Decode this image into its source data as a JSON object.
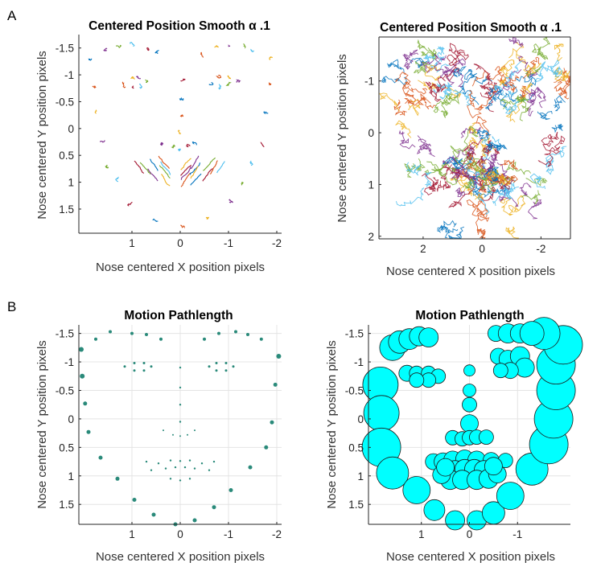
{
  "figure": {
    "panel_letters": [
      "A",
      "B"
    ]
  },
  "chart_data": [
    {
      "id": "A1",
      "type": "line",
      "title": "Centered Position Smooth α .1",
      "xlabel": "Nose centered X position pixels",
      "ylabel": "Nose centered Y position pixels",
      "xlim": [
        2.1,
        -2.1
      ],
      "ylim": [
        -1.75,
        1.95
      ],
      "xticks": [
        1,
        0,
        -1,
        -2
      ],
      "xtick_labels": [
        "1",
        "0",
        "-1",
        "-2"
      ],
      "yticks": [
        -1.5,
        -1,
        -0.5,
        0,
        0.5,
        1,
        1.5
      ],
      "ytick_labels": [
        "-1.5",
        "-1",
        "-0.5",
        "0",
        "0.5",
        "1",
        "1.5"
      ],
      "grid": false,
      "series_description": "small jitter trajectories at 68 facial landmarks",
      "colors": [
        "#0072BD",
        "#D95319",
        "#EDB120",
        "#7E2F8E",
        "#77AC30",
        "#4DBEEE",
        "#A2142F"
      ],
      "landmarks": [
        [
          1.85,
          -1.3
        ],
        [
          1.82,
          -0.8
        ],
        [
          1.75,
          -0.3
        ],
        [
          1.65,
          0.25
        ],
        [
          1.5,
          0.7
        ],
        [
          1.3,
          1.0
        ],
        [
          1.0,
          1.35
        ],
        [
          0.55,
          1.7
        ],
        [
          0.0,
          1.82
        ],
        [
          -0.55,
          1.7
        ],
        [
          -1.0,
          1.35
        ],
        [
          -1.3,
          1.0
        ],
        [
          -1.5,
          0.7
        ],
        [
          -1.65,
          0.25
        ],
        [
          -1.75,
          -0.3
        ],
        [
          -1.82,
          -0.8
        ],
        [
          -1.85,
          -1.3
        ],
        [
          1.55,
          -1.45
        ],
        [
          1.35,
          -1.52
        ],
        [
          1.0,
          -1.55
        ],
        [
          0.7,
          -1.5
        ],
        [
          0.45,
          -1.4
        ],
        [
          -0.45,
          -1.4
        ],
        [
          -0.7,
          -1.5
        ],
        [
          -1.0,
          -1.55
        ],
        [
          -1.35,
          -1.52
        ],
        [
          -1.55,
          -1.45
        ],
        [
          0.0,
          -0.9
        ],
        [
          0.0,
          -0.55
        ],
        [
          0.0,
          -0.25
        ],
        [
          0.0,
          0.05
        ],
        [
          0.35,
          0.3
        ],
        [
          0.18,
          0.35
        ],
        [
          0.0,
          0.38
        ],
        [
          -0.18,
          0.35
        ],
        [
          -0.35,
          0.3
        ],
        [
          1.2,
          -0.85
        ],
        [
          1.0,
          -0.95
        ],
        [
          0.8,
          -0.95
        ],
        [
          0.65,
          -0.85
        ],
        [
          0.8,
          -0.78
        ],
        [
          1.0,
          -0.78
        ],
        [
          -0.65,
          -0.85
        ],
        [
          -0.8,
          -0.95
        ],
        [
          -1.0,
          -0.95
        ],
        [
          -1.2,
          -0.85
        ],
        [
          -1.0,
          -0.78
        ],
        [
          -0.8,
          -0.78
        ],
        [
          0.75,
          0.85
        ],
        [
          0.45,
          0.8
        ],
        [
          0.2,
          0.76
        ],
        [
          0.0,
          0.78
        ],
        [
          -0.2,
          0.76
        ],
        [
          -0.45,
          0.8
        ],
        [
          -0.75,
          0.85
        ],
        [
          -0.45,
          1.0
        ],
        [
          -0.2,
          1.08
        ],
        [
          0.0,
          1.1
        ],
        [
          0.2,
          1.08
        ],
        [
          0.45,
          1.0
        ],
        [
          0.6,
          0.87
        ],
        [
          0.2,
          0.88
        ],
        [
          0.0,
          0.9
        ],
        [
          -0.2,
          0.88
        ],
        [
          -0.6,
          0.87
        ],
        [
          -0.2,
          0.95
        ],
        [
          0.0,
          0.97
        ],
        [
          0.2,
          0.95
        ]
      ]
    },
    {
      "id": "A2",
      "type": "line",
      "title": "Centered Position Smooth α .1",
      "xlabel": "Nose centered X position pixels",
      "ylabel": "Nose centered Y position pixels",
      "xlim": [
        3.5,
        -3.0
      ],
      "ylim": [
        -1.85,
        2.05
      ],
      "xticks": [
        2,
        0,
        -2
      ],
      "xtick_labels": [
        "2",
        "0",
        "-2"
      ],
      "yticks": [
        -1,
        0,
        1,
        2
      ],
      "ytick_labels": [
        "-1",
        "0",
        "1",
        "2"
      ],
      "grid": false,
      "series_description": "dense overlapping trajectories for every landmark, spread much wider than panel 1",
      "colors": [
        "#0072BD",
        "#D95319",
        "#EDB120",
        "#7E2F8E",
        "#77AC30",
        "#4DBEEE",
        "#A2142F"
      ]
    },
    {
      "id": "B1",
      "type": "scatter",
      "title": "Motion Pathlength",
      "xlabel": "Nose centered X position pixels",
      "ylabel": "Nose centered Y position pixels",
      "xlim": [
        2.1,
        -2.1
      ],
      "ylim": [
        -1.65,
        1.85
      ],
      "xticks": [
        1,
        0,
        -1,
        -2
      ],
      "xtick_labels": [
        "1",
        "0",
        "-1",
        "-2"
      ],
      "yticks": [
        -1.5,
        -1,
        -0.5,
        0,
        0.5,
        1,
        1.5
      ],
      "ytick_labels": [
        "-1.5",
        "-1",
        "-0.5",
        "0",
        "0.5",
        "1",
        "1.5"
      ],
      "grid": true,
      "marker_color": "#2a8a7a",
      "points": [
        [
          2.05,
          -1.22,
          3
        ],
        [
          2.03,
          -0.75,
          3
        ],
        [
          1.97,
          -0.27,
          2.5
        ],
        [
          1.9,
          0.23,
          2.5
        ],
        [
          1.65,
          0.68,
          2.5
        ],
        [
          1.3,
          1.05,
          2.5
        ],
        [
          0.95,
          1.42,
          2.5
        ],
        [
          0.55,
          1.68,
          2.5
        ],
        [
          0.1,
          1.85,
          2.5
        ],
        [
          -0.3,
          1.78,
          2.5
        ],
        [
          -0.7,
          1.55,
          2.5
        ],
        [
          -1.05,
          1.25,
          2.5
        ],
        [
          -1.45,
          0.85,
          2.5
        ],
        [
          -1.78,
          0.5,
          2.5
        ],
        [
          -1.9,
          0.06,
          2.5
        ],
        [
          -1.97,
          -0.6,
          2.5
        ],
        [
          -2.04,
          -1.1,
          3
        ],
        [
          1.75,
          -1.4,
          2
        ],
        [
          1.45,
          -1.53,
          2
        ],
        [
          1.0,
          -1.5,
          2
        ],
        [
          0.7,
          -1.48,
          2
        ],
        [
          0.4,
          -1.4,
          2
        ],
        [
          -0.5,
          -1.4,
          2
        ],
        [
          -0.8,
          -1.5,
          2
        ],
        [
          -1.15,
          -1.53,
          2
        ],
        [
          -1.4,
          -1.48,
          2
        ],
        [
          -1.68,
          -1.4,
          2
        ],
        [
          1.15,
          -0.92,
          1.5
        ],
        [
          0.95,
          -0.98,
          1.5
        ],
        [
          0.75,
          -0.98,
          1.5
        ],
        [
          0.6,
          -0.92,
          1.5
        ],
        [
          0.75,
          -0.85,
          1.5
        ],
        [
          0.95,
          -0.85,
          1.5
        ],
        [
          -0.6,
          -0.92,
          1.5
        ],
        [
          -0.75,
          -0.98,
          1.5
        ],
        [
          -0.95,
          -0.98,
          1.5
        ],
        [
          -1.1,
          -0.92,
          1.5
        ],
        [
          -0.95,
          -0.85,
          1.5
        ],
        [
          -0.75,
          -0.85,
          1.5
        ],
        [
          0.0,
          -0.9,
          1.2
        ],
        [
          0.0,
          -0.55,
          1.2
        ],
        [
          0.0,
          -0.25,
          1.2
        ],
        [
          0.0,
          0.05,
          1.2
        ],
        [
          0.35,
          0.2,
          1
        ],
        [
          0.15,
          0.28,
          1
        ],
        [
          0.0,
          0.3,
          1
        ],
        [
          -0.15,
          0.28,
          1
        ],
        [
          -0.3,
          0.2,
          1
        ],
        [
          0.7,
          0.75,
          1.2
        ],
        [
          0.45,
          0.78,
          1.2
        ],
        [
          0.2,
          0.73,
          1.2
        ],
        [
          0.0,
          0.74,
          1.2
        ],
        [
          -0.2,
          0.73,
          1.2
        ],
        [
          -0.45,
          0.78,
          1.2
        ],
        [
          -0.7,
          0.75,
          1.2
        ],
        [
          0.3,
          0.87,
          1.2
        ],
        [
          0.1,
          0.85,
          1.2
        ],
        [
          -0.1,
          0.85,
          1.2
        ],
        [
          -0.3,
          0.87,
          1.2
        ],
        [
          0.2,
          1.05,
          1.2
        ],
        [
          0.0,
          1.08,
          1.2
        ],
        [
          -0.2,
          1.05,
          1.2
        ],
        [
          0.6,
          0.9,
          1.2
        ],
        [
          -0.6,
          0.9,
          1.2
        ]
      ]
    },
    {
      "id": "B2",
      "type": "scatter",
      "title": "Motion Pathlength",
      "xlabel": "Nose centered X position pixels",
      "ylabel": "Nose centered Y position pixels",
      "xlim": [
        2.1,
        -2.1
      ],
      "ylim": [
        -1.65,
        1.85
      ],
      "xticks": [
        1,
        0,
        -1
      ],
      "xtick_labels": [
        "1",
        "0",
        "-1"
      ],
      "yticks": [
        -1.5,
        -1,
        -0.5,
        0,
        0.5,
        1,
        1.5
      ],
      "ytick_labels": [
        "-1.5",
        "-1",
        "-0.5",
        "0",
        "0.5",
        "1",
        "1.5"
      ],
      "grid": true,
      "marker_color": "#00ffff",
      "marker_edge": "#1a1a1a",
      "points": [
        [
          1.85,
          -0.6,
          22
        ],
        [
          1.83,
          -0.1,
          22
        ],
        [
          1.83,
          0.5,
          24
        ],
        [
          1.6,
          0.95,
          20
        ],
        [
          1.1,
          1.25,
          17
        ],
        [
          0.73,
          1.6,
          13
        ],
        [
          0.3,
          1.78,
          12
        ],
        [
          -0.15,
          1.78,
          12
        ],
        [
          -0.5,
          1.65,
          14
        ],
        [
          -0.85,
          1.35,
          17
        ],
        [
          -1.3,
          0.88,
          20
        ],
        [
          -1.65,
          0.45,
          24
        ],
        [
          -1.75,
          0.0,
          24
        ],
        [
          -1.8,
          -0.5,
          24
        ],
        [
          -1.8,
          -0.95,
          24
        ],
        [
          -1.95,
          -1.3,
          24
        ],
        [
          -1.55,
          -1.5,
          20
        ],
        [
          1.6,
          -1.25,
          16
        ],
        [
          1.45,
          -1.35,
          14
        ],
        [
          1.25,
          -1.4,
          13
        ],
        [
          1.05,
          -1.45,
          12
        ],
        [
          0.85,
          -1.43,
          12
        ],
        [
          -0.55,
          -1.5,
          10
        ],
        [
          -0.8,
          -1.5,
          12
        ],
        [
          -1.05,
          -1.5,
          12
        ],
        [
          -1.3,
          -1.5,
          15
        ],
        [
          1.3,
          -0.8,
          10
        ],
        [
          1.1,
          -0.8,
          9
        ],
        [
          0.85,
          -0.8,
          9
        ],
        [
          0.65,
          -0.75,
          9
        ],
        [
          0.85,
          -0.68,
          9
        ],
        [
          1.1,
          -0.68,
          9
        ],
        [
          -0.6,
          -1.1,
          10
        ],
        [
          -0.8,
          -1.05,
          11
        ],
        [
          -1.05,
          -1.1,
          12
        ],
        [
          -1.15,
          -0.9,
          12
        ],
        [
          -0.85,
          -0.85,
          10
        ],
        [
          -0.65,
          -0.85,
          9
        ],
        [
          0.0,
          -0.85,
          7
        ],
        [
          0.0,
          -0.5,
          8
        ],
        [
          0.0,
          -0.25,
          9
        ],
        [
          0.0,
          0.08,
          11
        ],
        [
          0.35,
          0.33,
          9
        ],
        [
          0.15,
          0.35,
          9
        ],
        [
          0.0,
          0.33,
          9
        ],
        [
          -0.15,
          0.32,
          9
        ],
        [
          -0.35,
          0.32,
          9
        ],
        [
          0.75,
          0.75,
          10
        ],
        [
          0.55,
          0.75,
          11
        ],
        [
          0.35,
          0.72,
          11
        ],
        [
          0.1,
          0.7,
          11
        ],
        [
          -0.15,
          0.72,
          11
        ],
        [
          -0.45,
          0.73,
          10
        ],
        [
          -0.75,
          0.73,
          9
        ],
        [
          0.3,
          0.9,
          12
        ],
        [
          0.1,
          0.88,
          12
        ],
        [
          -0.1,
          0.88,
          12
        ],
        [
          -0.3,
          0.9,
          12
        ],
        [
          0.4,
          1.07,
          12
        ],
        [
          0.15,
          1.07,
          12
        ],
        [
          -0.15,
          1.07,
          12
        ],
        [
          -0.4,
          1.05,
          12
        ],
        [
          0.58,
          0.98,
          11
        ],
        [
          -0.58,
          0.97,
          11
        ],
        [
          0.5,
          0.85,
          11
        ],
        [
          -0.5,
          0.83,
          11
        ]
      ]
    }
  ]
}
